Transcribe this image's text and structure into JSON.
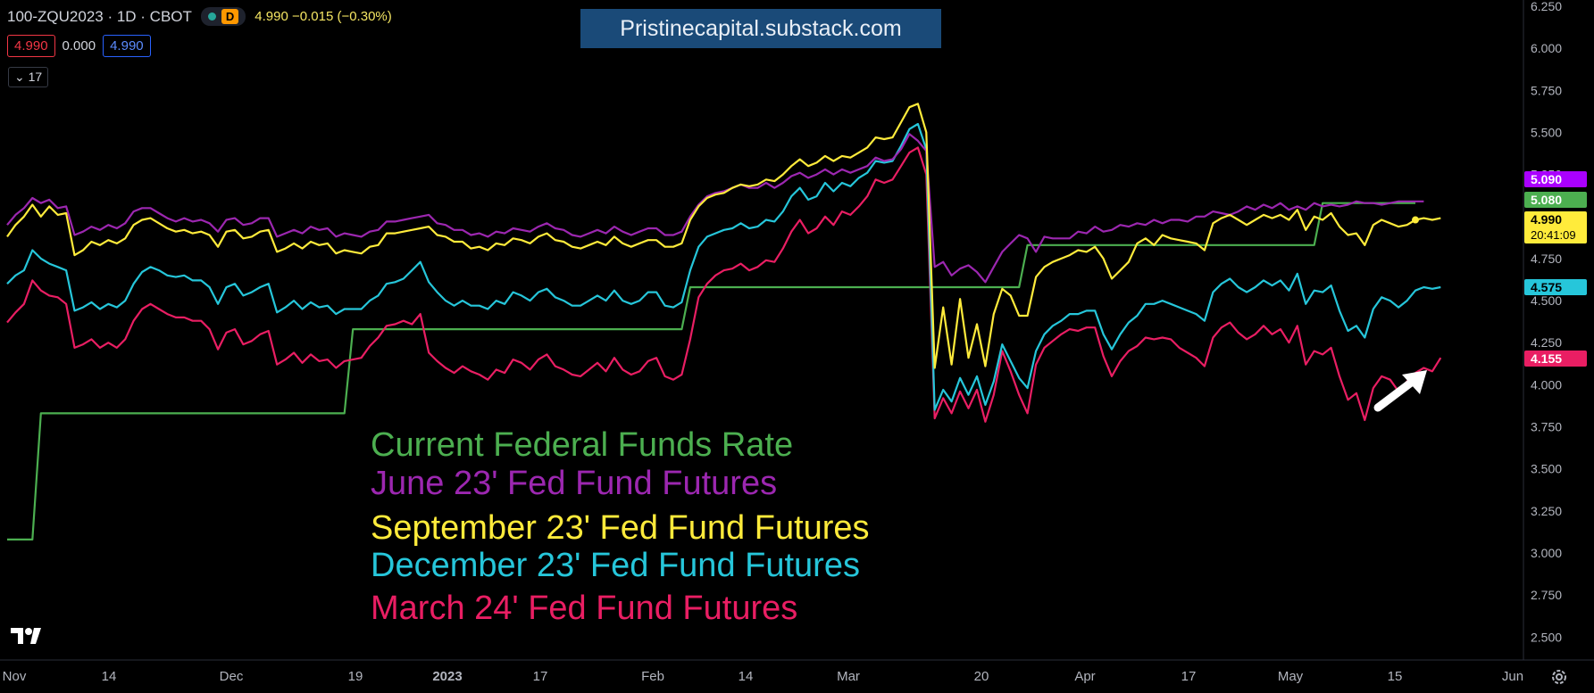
{
  "header": {
    "symbol": "100-ZQU2023 · 1D · CBOT",
    "interval_badge": "D",
    "quote": "4.990  −0.015 (−0.30%)",
    "val_red": "4.990",
    "val_mid": "0.000",
    "val_blue": "4.990",
    "collapse_label": "⌄ 17"
  },
  "watermark": "Pristinecapital.substack.com",
  "colors": {
    "fed_rate": "#4caf50",
    "jun23": "#9c27b0",
    "sep23": "#ffeb3b",
    "dec23": "#26c6da",
    "mar24": "#e91e63",
    "purple_tag": "#aa00ff"
  },
  "chart_data": {
    "type": "line",
    "x_axis_labels": [
      "Nov",
      "14",
      "Dec",
      "19",
      "2023",
      "17",
      "Feb",
      "14",
      "Mar",
      "20",
      "Apr",
      "17",
      "May",
      "15",
      "Jun"
    ],
    "y_ticks": [
      "6.250",
      "6.000",
      "5.750",
      "5.500",
      "5.250",
      "5.000",
      "4.750",
      "4.500",
      "4.250",
      "4.000",
      "3.750",
      "3.500",
      "3.250",
      "3.000",
      "2.750",
      "2.500"
    ],
    "ylim": [
      2.25,
      6.25
    ],
    "grid": false,
    "legend_position": "center-left",
    "series": [
      {
        "name": "Current Federal Funds Rate",
        "values": [
          3.08,
          3.08,
          3.08,
          3.08,
          3.83,
          3.83,
          3.83,
          3.83,
          3.83,
          3.83,
          3.83,
          3.83,
          3.83,
          3.83,
          3.83,
          3.83,
          3.83,
          3.83,
          3.83,
          3.83,
          3.83,
          3.83,
          3.83,
          3.83,
          3.83,
          3.83,
          3.83,
          3.83,
          3.83,
          3.83,
          3.83,
          3.83,
          3.83,
          3.83,
          3.83,
          3.83,
          3.83,
          3.83,
          3.83,
          3.83,
          3.83,
          4.33,
          4.33,
          4.33,
          4.33,
          4.33,
          4.33,
          4.33,
          4.33,
          4.33,
          4.33,
          4.33,
          4.33,
          4.33,
          4.33,
          4.33,
          4.33,
          4.33,
          4.33,
          4.33,
          4.33,
          4.33,
          4.33,
          4.33,
          4.33,
          4.33,
          4.33,
          4.33,
          4.33,
          4.33,
          4.33,
          4.33,
          4.33,
          4.33,
          4.33,
          4.33,
          4.33,
          4.33,
          4.33,
          4.33,
          4.33,
          4.58,
          4.58,
          4.58,
          4.58,
          4.58,
          4.58,
          4.58,
          4.58,
          4.58,
          4.58,
          4.58,
          4.58,
          4.58,
          4.58,
          4.58,
          4.58,
          4.58,
          4.58,
          4.58,
          4.58,
          4.58,
          4.58,
          4.58,
          4.58,
          4.58,
          4.58,
          4.58,
          4.58,
          4.58,
          4.58,
          4.58,
          4.58,
          4.58,
          4.58,
          4.58,
          4.58,
          4.58,
          4.58,
          4.58,
          4.58,
          4.83,
          4.83,
          4.83,
          4.83,
          4.83,
          4.83,
          4.83,
          4.83,
          4.83,
          4.83,
          4.83,
          4.83,
          4.83,
          4.83,
          4.83,
          4.83,
          4.83,
          4.83,
          4.83,
          4.83,
          4.83,
          4.83,
          4.83,
          4.83,
          4.83,
          4.83,
          4.83,
          4.83,
          4.83,
          4.83,
          4.83,
          4.83,
          4.83,
          4.83,
          4.83,
          5.08,
          5.08,
          5.08,
          5.08,
          5.08,
          5.08,
          5.08,
          5.08,
          5.08,
          5.08,
          5.08,
          5.08
        ]
      },
      {
        "name": "June 23' Fed Fund Futures",
        "values": [
          4.95,
          5.01,
          5.05,
          5.11,
          5.08,
          5.1,
          5.05,
          5.06,
          4.89,
          4.91,
          4.94,
          4.92,
          4.95,
          4.93,
          4.96,
          5.03,
          5.05,
          5.05,
          5.02,
          4.99,
          4.97,
          4.99,
          4.97,
          4.98,
          4.96,
          4.91,
          4.98,
          4.99,
          4.95,
          4.96,
          4.99,
          4.99,
          4.88,
          4.9,
          4.92,
          4.9,
          4.94,
          4.92,
          4.93,
          4.88,
          4.9,
          4.89,
          4.88,
          4.91,
          4.92,
          4.97,
          4.97,
          4.98,
          4.99,
          5.0,
          5.01,
          4.96,
          4.95,
          4.92,
          4.92,
          4.89,
          4.9,
          4.88,
          4.91,
          4.9,
          4.93,
          4.92,
          4.91,
          4.94,
          4.96,
          4.93,
          4.92,
          4.89,
          4.88,
          4.9,
          4.92,
          4.9,
          4.94,
          4.91,
          4.89,
          4.91,
          4.93,
          4.93,
          4.89,
          4.89,
          4.91,
          5.0,
          5.07,
          5.12,
          5.14,
          5.15,
          5.17,
          5.19,
          5.17,
          5.17,
          5.2,
          5.17,
          5.2,
          5.24,
          5.26,
          5.23,
          5.25,
          5.28,
          5.25,
          5.28,
          5.26,
          5.28,
          5.3,
          5.35,
          5.33,
          5.34,
          5.4,
          5.49,
          5.45,
          5.39,
          4.7,
          4.73,
          4.65,
          4.69,
          4.71,
          4.67,
          4.61,
          4.7,
          4.79,
          4.84,
          4.89,
          4.87,
          4.79,
          4.88,
          4.87,
          4.87,
          4.87,
          4.91,
          4.9,
          4.94,
          4.91,
          4.92,
          4.95,
          4.94,
          4.96,
          4.95,
          4.98,
          4.96,
          4.98,
          4.98,
          4.97,
          5.0,
          5.0,
          5.03,
          5.02,
          5.01,
          5.03,
          5.06,
          5.04,
          5.07,
          5.05,
          5.08,
          5.04,
          5.06,
          5.04,
          5.08,
          5.06,
          5.07,
          5.06,
          5.07,
          5.09,
          5.08,
          5.08,
          5.07,
          5.08,
          5.09,
          5.09,
          5.09,
          5.09
        ]
      },
      {
        "name": "September 23' Fed Fund Futures",
        "values": [
          4.88,
          4.95,
          5.0,
          5.07,
          5.0,
          5.06,
          5.01,
          5.02,
          4.77,
          4.8,
          4.85,
          4.83,
          4.86,
          4.84,
          4.87,
          4.95,
          4.98,
          4.99,
          4.96,
          4.93,
          4.91,
          4.92,
          4.9,
          4.91,
          4.89,
          4.82,
          4.91,
          4.92,
          4.87,
          4.88,
          4.91,
          4.92,
          4.79,
          4.81,
          4.84,
          4.81,
          4.85,
          4.83,
          4.84,
          4.78,
          4.8,
          4.79,
          4.78,
          4.82,
          4.83,
          4.9,
          4.9,
          4.91,
          4.92,
          4.93,
          4.94,
          4.89,
          4.88,
          4.85,
          4.85,
          4.81,
          4.82,
          4.8,
          4.84,
          4.83,
          4.87,
          4.86,
          4.84,
          4.88,
          4.9,
          4.86,
          4.85,
          4.82,
          4.81,
          4.83,
          4.85,
          4.83,
          4.88,
          4.84,
          4.82,
          4.84,
          4.86,
          4.86,
          4.82,
          4.82,
          4.84,
          4.98,
          5.06,
          5.11,
          5.13,
          5.14,
          5.17,
          5.19,
          5.18,
          5.19,
          5.22,
          5.21,
          5.25,
          5.3,
          5.34,
          5.3,
          5.32,
          5.36,
          5.33,
          5.36,
          5.35,
          5.38,
          5.41,
          5.47,
          5.46,
          5.47,
          5.56,
          5.65,
          5.67,
          5.5,
          4.1,
          4.46,
          4.12,
          4.51,
          4.16,
          4.36,
          4.11,
          4.42,
          4.57,
          4.53,
          4.41,
          4.41,
          4.64,
          4.7,
          4.73,
          4.75,
          4.77,
          4.8,
          4.79,
          4.82,
          4.75,
          4.63,
          4.68,
          4.73,
          4.84,
          4.87,
          4.83,
          4.89,
          4.87,
          4.86,
          4.85,
          4.84,
          4.8,
          4.96,
          4.99,
          5.01,
          4.98,
          4.95,
          4.98,
          5.01,
          4.99,
          5.01,
          4.98,
          5.04,
          4.92,
          5.0,
          4.98,
          5.02,
          4.94,
          4.89,
          4.9,
          4.83,
          4.95,
          4.98,
          4.96,
          4.94,
          4.95,
          4.98,
          4.99,
          4.98,
          4.99
        ]
      },
      {
        "name": "December 23' Fed Fund Futures",
        "values": [
          4.6,
          4.65,
          4.68,
          4.8,
          4.75,
          4.72,
          4.7,
          4.68,
          4.44,
          4.46,
          4.49,
          4.45,
          4.48,
          4.46,
          4.5,
          4.6,
          4.67,
          4.7,
          4.68,
          4.65,
          4.64,
          4.65,
          4.62,
          4.62,
          4.58,
          4.48,
          4.58,
          4.6,
          4.53,
          4.55,
          4.58,
          4.6,
          4.43,
          4.46,
          4.5,
          4.45,
          4.49,
          4.46,
          4.47,
          4.42,
          4.45,
          4.45,
          4.45,
          4.5,
          4.53,
          4.6,
          4.61,
          4.63,
          4.68,
          4.73,
          4.61,
          4.55,
          4.5,
          4.47,
          4.5,
          4.47,
          4.47,
          4.45,
          4.5,
          4.48,
          4.55,
          4.53,
          4.5,
          4.55,
          4.57,
          4.52,
          4.5,
          4.47,
          4.47,
          4.5,
          4.53,
          4.5,
          4.56,
          4.5,
          4.48,
          4.5,
          4.55,
          4.55,
          4.47,
          4.46,
          4.49,
          4.68,
          4.82,
          4.88,
          4.9,
          4.92,
          4.93,
          4.96,
          4.93,
          4.94,
          4.98,
          4.97,
          5.03,
          5.12,
          5.17,
          5.1,
          5.12,
          5.2,
          5.15,
          5.2,
          5.18,
          5.23,
          5.26,
          5.33,
          5.32,
          5.33,
          5.42,
          5.52,
          5.55,
          5.4,
          3.85,
          3.97,
          3.9,
          4.04,
          3.94,
          4.05,
          3.88,
          4.02,
          4.24,
          4.14,
          4.04,
          3.98,
          4.2,
          4.3,
          4.35,
          4.38,
          4.42,
          4.42,
          4.44,
          4.44,
          4.3,
          4.21,
          4.3,
          4.37,
          4.41,
          4.48,
          4.48,
          4.5,
          4.48,
          4.46,
          4.44,
          4.42,
          4.38,
          4.55,
          4.6,
          4.63,
          4.58,
          4.55,
          4.58,
          4.62,
          4.59,
          4.62,
          4.56,
          4.66,
          4.48,
          4.56,
          4.55,
          4.59,
          4.44,
          4.32,
          4.35,
          4.28,
          4.45,
          4.52,
          4.5,
          4.46,
          4.5,
          4.56,
          4.58,
          4.57,
          4.58
        ]
      },
      {
        "name": "March 24' Fed Fund Futures",
        "values": [
          4.37,
          4.43,
          4.48,
          4.62,
          4.56,
          4.53,
          4.52,
          4.48,
          4.22,
          4.24,
          4.27,
          4.22,
          4.25,
          4.22,
          4.27,
          4.38,
          4.45,
          4.48,
          4.45,
          4.42,
          4.4,
          4.4,
          4.38,
          4.38,
          4.33,
          4.21,
          4.31,
          4.33,
          4.24,
          4.26,
          4.3,
          4.32,
          4.12,
          4.15,
          4.19,
          4.13,
          4.18,
          4.14,
          4.15,
          4.1,
          4.14,
          4.15,
          4.16,
          4.23,
          4.28,
          4.35,
          4.36,
          4.38,
          4.36,
          4.42,
          4.19,
          4.14,
          4.1,
          4.07,
          4.11,
          4.08,
          4.06,
          4.03,
          4.09,
          4.07,
          4.15,
          4.13,
          4.09,
          4.15,
          4.18,
          4.11,
          4.09,
          4.06,
          4.05,
          4.09,
          4.13,
          4.08,
          4.16,
          4.09,
          4.06,
          4.08,
          4.14,
          4.16,
          4.05,
          4.03,
          4.06,
          4.27,
          4.52,
          4.6,
          4.65,
          4.68,
          4.69,
          4.72,
          4.68,
          4.7,
          4.74,
          4.73,
          4.81,
          4.91,
          4.98,
          4.9,
          4.93,
          5.0,
          4.95,
          5.03,
          5.01,
          5.06,
          5.12,
          5.22,
          5.2,
          5.22,
          5.3,
          5.38,
          5.41,
          5.25,
          3.8,
          3.92,
          3.83,
          3.96,
          3.86,
          3.97,
          3.78,
          3.94,
          4.2,
          4.08,
          3.94,
          3.83,
          4.12,
          4.22,
          4.26,
          4.3,
          4.33,
          4.32,
          4.34,
          4.34,
          4.17,
          4.05,
          4.14,
          4.2,
          4.23,
          4.28,
          4.27,
          4.28,
          4.27,
          4.22,
          4.19,
          4.16,
          4.11,
          4.28,
          4.34,
          4.37,
          4.31,
          4.27,
          4.3,
          4.35,
          4.3,
          4.33,
          4.25,
          4.35,
          4.12,
          4.2,
          4.18,
          4.22,
          4.05,
          3.91,
          3.95,
          3.79,
          3.98,
          4.05,
          4.03,
          3.96,
          4.02,
          4.07,
          4.1,
          4.08,
          4.16
        ]
      }
    ],
    "last_value_tags": [
      {
        "label": "5.090",
        "series": "June 23' Fed Fund Futures",
        "value": 5.09
      },
      {
        "label": "5.080",
        "series": "Current Federal Funds Rate",
        "value": 5.08
      },
      {
        "label": "4.990",
        "sub": "20:41:09",
        "series": "September 23' Fed Fund Futures",
        "value": 4.99
      },
      {
        "label": "4.575",
        "series": "December 23' Fed Fund Futures",
        "value": 4.575
      },
      {
        "label": "4.155",
        "series": "March 24' Fed Fund Futures",
        "value": 4.155
      }
    ]
  }
}
